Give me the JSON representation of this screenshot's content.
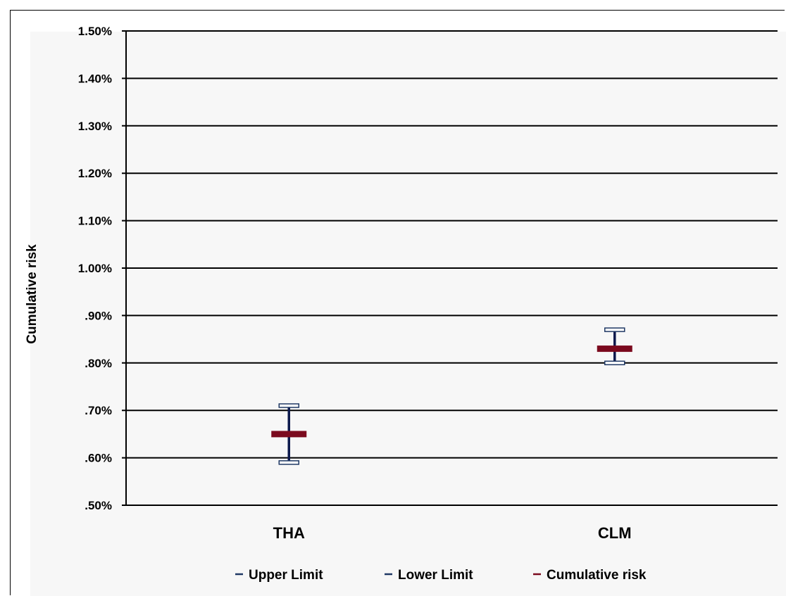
{
  "chart_data": {
    "type": "scatter",
    "title": "",
    "ylabel": "Cumulative risk",
    "xlabel": "",
    "categories": [
      "THA",
      "CLM"
    ],
    "ylim": [
      0.5,
      1.5
    ],
    "y_ticks": [
      0.5,
      0.6,
      0.7,
      0.8,
      0.9,
      1.0,
      1.1,
      1.2,
      1.3,
      1.4,
      1.5
    ],
    "y_tick_labels": [
      ".50%",
      ".60%",
      ".70%",
      ".80%",
      ".90%",
      "1.00%",
      "1.10%",
      "1.20%",
      "1.30%",
      "1.40%",
      "1.50%"
    ],
    "grid": true,
    "legend_position": "bottom",
    "series": [
      {
        "name": "Upper Limit",
        "values": [
          0.71,
          0.87
        ],
        "color": "#1f3864"
      },
      {
        "name": "Lower Limit",
        "values": [
          0.59,
          0.8
        ],
        "color": "#1f3864"
      },
      {
        "name": "Cumulative risk",
        "values": [
          0.65,
          0.83
        ],
        "color": "#7b0a1e"
      }
    ],
    "colors": {
      "error_bar": "#0d1a4d",
      "cap_fill": "#ffffff",
      "cap_stroke": "#1f3864",
      "point": "#7b0a1e",
      "grid": "#000000"
    }
  }
}
